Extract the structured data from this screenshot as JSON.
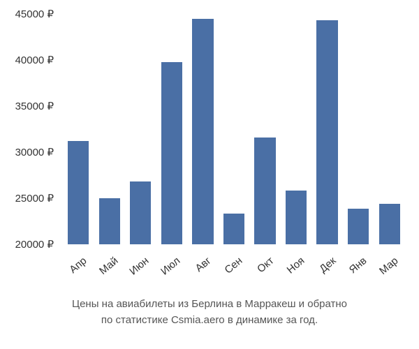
{
  "chart": {
    "type": "bar",
    "categories": [
      "Апр",
      "Май",
      "Июн",
      "Июл",
      "Авг",
      "Сен",
      "Окт",
      "Ноя",
      "Дек",
      "Янв",
      "Мар"
    ],
    "values": [
      31200,
      25000,
      26800,
      39800,
      44500,
      23300,
      31600,
      25800,
      44300,
      23900,
      24400
    ],
    "bar_color": "#4a6fa5",
    "background_color": "#ffffff",
    "ylim": [
      20000,
      45000
    ],
    "ytick_step": 5000,
    "y_suffix": " ₽",
    "y_ticks": [
      "20000 ₽",
      "25000 ₽",
      "30000 ₽",
      "35000 ₽",
      "40000 ₽",
      "45000 ₽"
    ],
    "bar_width_ratio": 0.68,
    "label_fontsize": 15,
    "label_color": "#333333",
    "caption_fontsize": 15,
    "caption_color": "#555555",
    "x_label_rotation": -40
  },
  "caption": {
    "line1": "Цены на авиабилеты из Берлина в Марракеш и обратно",
    "line2": "по статистике Csmia.aero в динамике за год."
  }
}
